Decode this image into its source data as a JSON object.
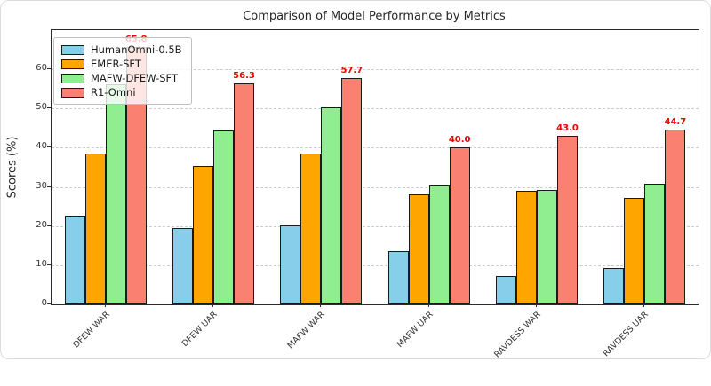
{
  "chart_data": {
    "type": "bar",
    "title": "Comparison of Model Performance by Metrics",
    "xlabel": "",
    "ylabel": "Scores (%)",
    "categories": [
      "DFEW WAR",
      "DFEW UAR",
      "MAFW WAR",
      "MAFW UAR",
      "RAVDESS WAR",
      "RAVDESS UAR"
    ],
    "series": [
      {
        "name": "HumanOmni-0.5B",
        "color": "#87CEEB",
        "values": [
          22.6,
          19.4,
          20.2,
          13.5,
          7.3,
          9.4
        ]
      },
      {
        "name": "EMER-SFT",
        "color": "#FFA500",
        "values": [
          38.6,
          35.3,
          38.4,
          28.0,
          29.0,
          27.2
        ]
      },
      {
        "name": "MAFW-DFEW-SFT",
        "color": "#90EE90",
        "values": [
          56.1,
          44.3,
          50.4,
          30.4,
          29.3,
          30.8
        ]
      },
      {
        "name": "R1-Omni",
        "color": "#FA8072",
        "values": [
          65.8,
          56.3,
          57.7,
          40.0,
          43.0,
          44.7
        ],
        "bar_labels": [
          "65.8",
          "56.3",
          "57.7",
          "40.0",
          "43.0",
          "44.7"
        ],
        "label_color": "#ee0000"
      }
    ],
    "ylim": [
      0,
      70
    ],
    "yticks": [
      0,
      10,
      20,
      30,
      40,
      50,
      60
    ],
    "grid": "horizontal-dashed",
    "legend_position": "upper-left",
    "legend_entries": [
      "HumanOmni-0.5B",
      "EMER-SFT",
      "MAFW-DFEW-SFT",
      "R1-Omni"
    ]
  }
}
